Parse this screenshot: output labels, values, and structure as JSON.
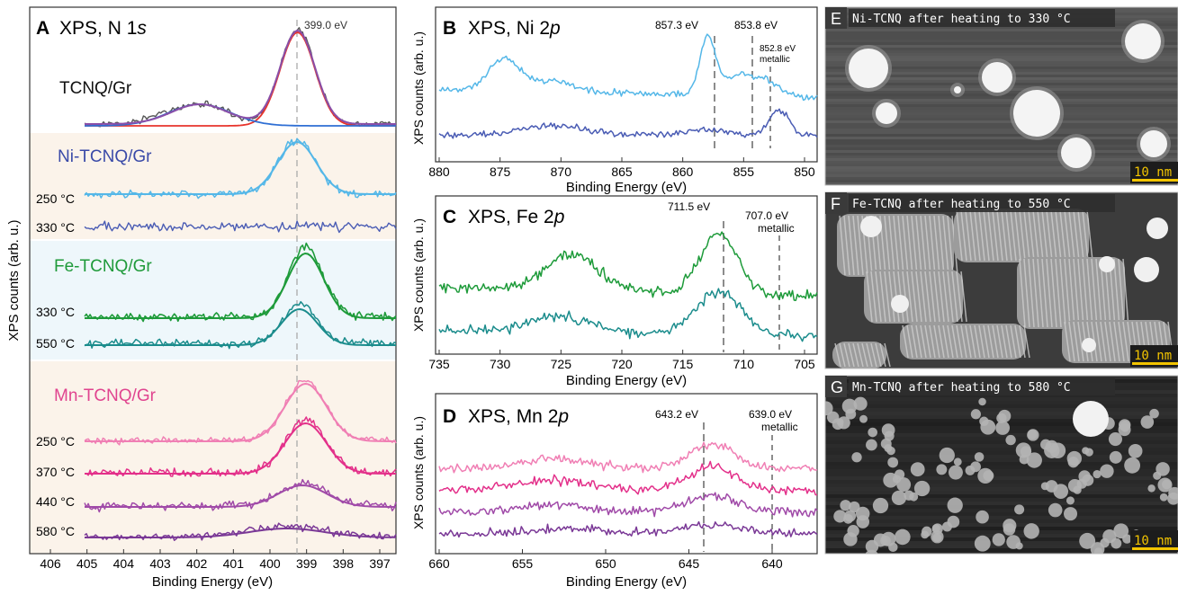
{
  "panelA": {
    "letter": "A",
    "title_main": "XPS, N 1",
    "title_ital": "s",
    "peak_label": "399.0 eV",
    "ylabel": "XPS counts (arb. u.)",
    "xlabel": "Binding Energy (eV)",
    "ticks": [
      "406",
      "405",
      "404",
      "403",
      "402",
      "401",
      "400",
      "399",
      "398",
      "397"
    ],
    "groups": [
      {
        "name": "TCNQ/Gr",
        "color": "#111111"
      },
      {
        "name": "Ni-TCNQ/Gr",
        "color": "#3a4aa8"
      },
      {
        "name": "Fe-TCNQ/Gr",
        "color": "#1f9a3a"
      },
      {
        "name": "Mn-TCNQ/Gr",
        "color": "#e0448f"
      }
    ],
    "temps": [
      "250 °C",
      "330 °C",
      "330 °C",
      "550 °C",
      "250 °C",
      "370 °C",
      "440 °C",
      "580 °C"
    ],
    "colors": {
      "tcnq": "#555555",
      "fit_red": "#e8342c",
      "fit_blue": "#2f6fd4",
      "ni250": "#54b7e8",
      "ni330": "#4a5cb4",
      "fe330": "#1e9b3a",
      "fe550": "#1b8c8c",
      "mn250": "#f07fb4",
      "mn370": "#e3308a",
      "mn440": "#a04aa8",
      "mn580": "#7a3896"
    }
  },
  "panelB": {
    "letter": "B",
    "title_main": "XPS, Ni 2",
    "title_ital": "p",
    "ylabel": "XPS counts (arb. u.)",
    "xlabel": "Binding Energy (eV)",
    "ticks": [
      "880",
      "875",
      "870",
      "865",
      "860",
      "855",
      "850"
    ],
    "ann1": "857.3 eV",
    "ann2": "853.8 eV",
    "ann3a": "852.8 eV",
    "ann3b": "metallic"
  },
  "panelC": {
    "letter": "C",
    "title_main": "XPS, Fe 2",
    "title_ital": "p",
    "ylabel": "XPS counts (arb. u.)",
    "xlabel": "Binding Energy (eV)",
    "ticks": [
      "735",
      "730",
      "725",
      "720",
      "715",
      "710",
      "705"
    ],
    "ann1": "711.5 eV",
    "ann2a": "707.0 eV",
    "ann2b": "metallic"
  },
  "panelD": {
    "letter": "D",
    "title_main": "XPS, Mn 2",
    "title_ital": "p",
    "ylabel": "XPS counts (arb. u.)",
    "xlabel": "Binding Energy (eV)",
    "ticks": [
      "660",
      "655",
      "650",
      "645",
      "640"
    ],
    "ann1": "643.2 eV",
    "ann2a": "639.0 eV",
    "ann2b": "metallic"
  },
  "panelE": {
    "letter": "E",
    "caption": "Ni-TCNQ after heating to 330 °C",
    "scale": "10 nm"
  },
  "panelF": {
    "letter": "F",
    "caption": "Fe-TCNQ after heating to 550 °C",
    "scale": "10 nm"
  },
  "panelG": {
    "letter": "G",
    "caption": "Mn-TCNQ after heating to 580 °C",
    "scale": "10 nm"
  }
}
